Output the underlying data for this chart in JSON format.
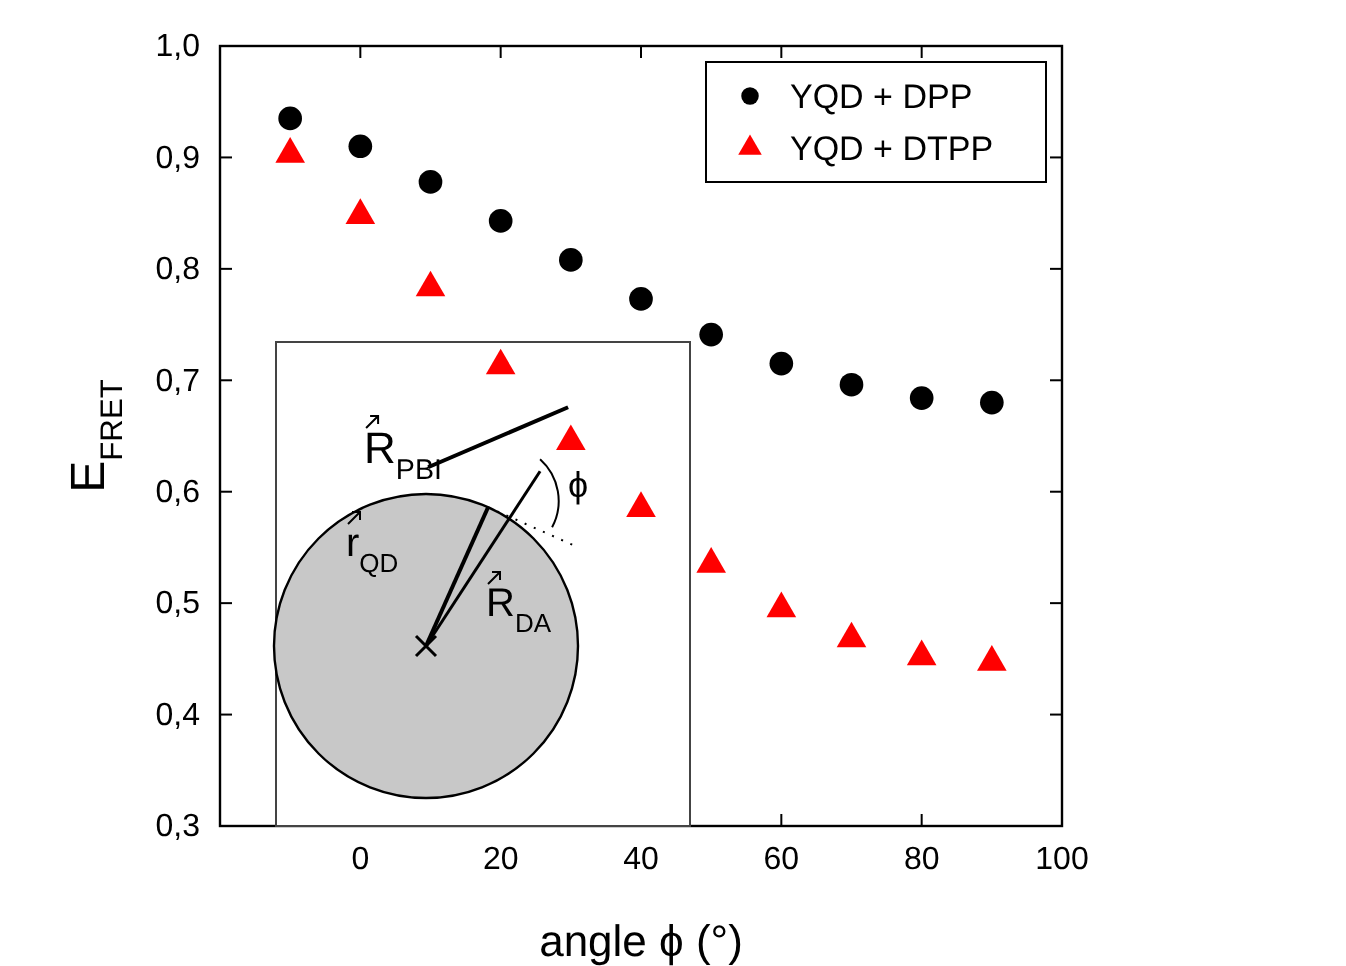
{
  "chart_data": {
    "type": "scatter",
    "xlabel": "angle ϕ (°)",
    "ylabel": "E$_{FRET}$",
    "x": [
      -10,
      0,
      10,
      20,
      30,
      40,
      50,
      60,
      70,
      80,
      90
    ],
    "series": [
      {
        "name": "YQD + DPP",
        "color": "#000000",
        "marker": "circle",
        "values": [
          0.935,
          0.91,
          0.878,
          0.843,
          0.808,
          0.773,
          0.741,
          0.715,
          0.696,
          0.684,
          0.68
        ]
      },
      {
        "name": "YQD + DTPP",
        "color": "#ff0000",
        "marker": "triangle",
        "values": [
          0.903,
          0.848,
          0.783,
          0.713,
          0.645,
          0.585,
          0.535,
          0.495,
          0.468,
          0.452,
          0.447
        ]
      }
    ],
    "xlim": [
      -20,
      100
    ],
    "xticks": [
      0,
      20,
      40,
      60,
      80,
      100
    ],
    "ylim": [
      0.3,
      1.0
    ],
    "yticks": [
      {
        "value": 0.3,
        "label": "0,3"
      },
      {
        "value": 0.4,
        "label": "0,4"
      },
      {
        "value": 0.5,
        "label": "0,5"
      },
      {
        "value": 0.6,
        "label": "0,6"
      },
      {
        "value": 0.7,
        "label": "0,7"
      },
      {
        "value": 0.8,
        "label": "0,8"
      },
      {
        "value": 0.9,
        "label": "0,9"
      },
      {
        "value": 1.0,
        "label": "1,0"
      }
    ],
    "grid": false,
    "legend": "top right",
    "annotations": [
      "R$_{PBI}$",
      "r$_{QD}$",
      "R$_{DA}$",
      "ϕ"
    ]
  }
}
